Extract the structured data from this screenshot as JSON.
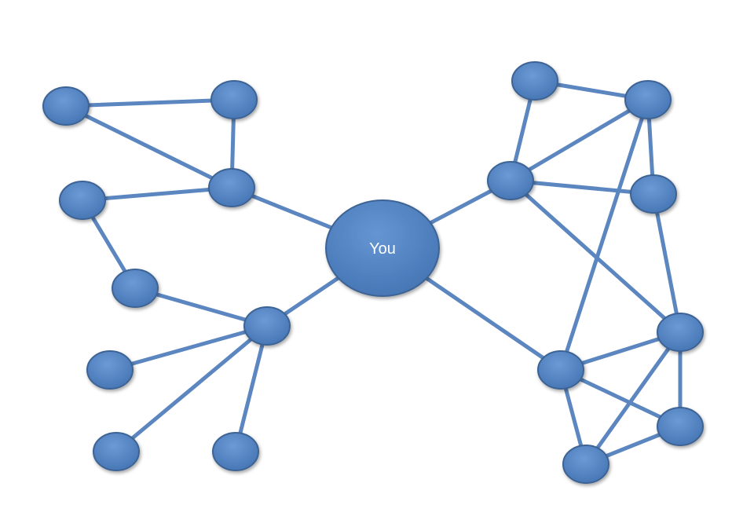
{
  "center_node": {
    "label": "You"
  },
  "colors": {
    "node_fill": "#5a8bcc",
    "node_fill_dark": "#4574b3",
    "node_stroke": "#3d6494",
    "edge": "#5b86c0",
    "label": "#ffffff",
    "background": "#ffffff"
  },
  "graph": {
    "nodes": [
      "you",
      "l1",
      "l2",
      "l3",
      "l4",
      "l5",
      "l6",
      "l7",
      "l8",
      "l9",
      "l10",
      "r1",
      "r2",
      "r3",
      "r4",
      "r5",
      "r6",
      "r7",
      "r8"
    ],
    "edges": [
      [
        "l1",
        "l2"
      ],
      [
        "l1",
        "l3"
      ],
      [
        "l2",
        "l3"
      ],
      [
        "l3",
        "l4"
      ],
      [
        "l3",
        "you"
      ],
      [
        "l4",
        "l5"
      ],
      [
        "l5",
        "l6"
      ],
      [
        "l6",
        "you"
      ],
      [
        "l6",
        "l7"
      ],
      [
        "l6",
        "l8"
      ],
      [
        "l6",
        "l9"
      ],
      [
        "you",
        "r3"
      ],
      [
        "you",
        "r5"
      ],
      [
        "r1",
        "r2"
      ],
      [
        "r1",
        "r3"
      ],
      [
        "r2",
        "r3"
      ],
      [
        "r2",
        "r4"
      ],
      [
        "r2",
        "r5"
      ],
      [
        "r3",
        "r4"
      ],
      [
        "r3",
        "r6"
      ],
      [
        "r4",
        "r6"
      ],
      [
        "r5",
        "r6"
      ],
      [
        "r5",
        "r7"
      ],
      [
        "r5",
        "r8"
      ],
      [
        "r6",
        "r7"
      ],
      [
        "r6",
        "r8"
      ],
      [
        "r7",
        "r8"
      ]
    ]
  }
}
